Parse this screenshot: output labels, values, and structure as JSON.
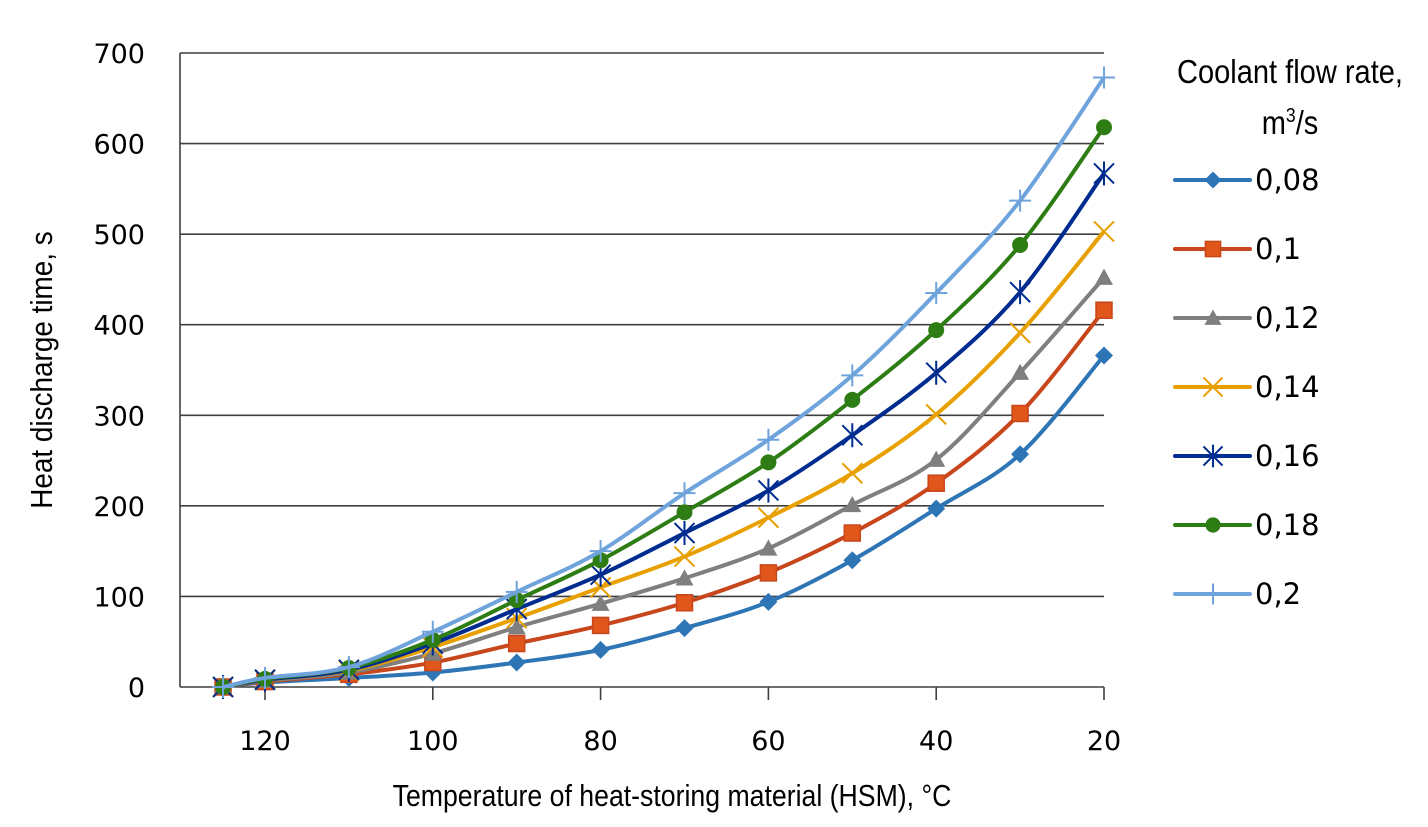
{
  "chart_data": {
    "type": "line",
    "title": "",
    "xlabel": "Temperature of heat-storing material (HSM), °C",
    "ylabel": "Heat discharge time, s",
    "x": [
      125,
      120,
      110,
      100,
      90,
      80,
      70,
      60,
      50,
      40,
      30,
      20
    ],
    "x_reversed": true,
    "xlim": [
      127.5,
      20
    ],
    "ylim": [
      0,
      700
    ],
    "xticks": [
      120,
      100,
      80,
      60,
      40,
      20
    ],
    "yticks": [
      0,
      100,
      200,
      300,
      400,
      500,
      600,
      700
    ],
    "grid": "horizontal",
    "legend": {
      "title_line1": "Coolant flow rate,",
      "title_unit_base": "m",
      "title_unit_sup": "3",
      "title_unit_rest": "/s",
      "placement": "right"
    },
    "series": [
      {
        "name": "0,08",
        "color": "#2E75B6",
        "marker": "diamond",
        "values": [
          0,
          5,
          10,
          16,
          27,
          41,
          65,
          94,
          140,
          197,
          257,
          366
        ]
      },
      {
        "name": "0,1",
        "color": "#C8461B",
        "marker": "square",
        "values": [
          0,
          6,
          14,
          27,
          48,
          68,
          93,
          126,
          170,
          225,
          302,
          416
        ]
      },
      {
        "name": "0,12",
        "color": "#7F7F7F",
        "marker": "triangle",
        "values": [
          0,
          7,
          16,
          37,
          66,
          92,
          120,
          153,
          201,
          251,
          347,
          452
        ]
      },
      {
        "name": "0,14",
        "color": "#E8A000",
        "marker": "x",
        "values": [
          0,
          8,
          18,
          44,
          76,
          110,
          144,
          187,
          236,
          301,
          391,
          503
        ]
      },
      {
        "name": "0,16",
        "color": "#002C8F",
        "marker": "star",
        "values": [
          0,
          8,
          19,
          48,
          86,
          124,
          170,
          217,
          278,
          347,
          436,
          567
        ]
      },
      {
        "name": "0,18",
        "color": "#2E7D14",
        "marker": "circle",
        "values": [
          0,
          9,
          21,
          52,
          96,
          140,
          193,
          248,
          317,
          394,
          488,
          618
        ]
      },
      {
        "name": "0,2",
        "color": "#6FA3DC",
        "marker": "plus",
        "values": [
          0,
          10,
          22,
          61,
          105,
          150,
          214,
          273,
          344,
          435,
          537,
          673
        ]
      }
    ]
  }
}
